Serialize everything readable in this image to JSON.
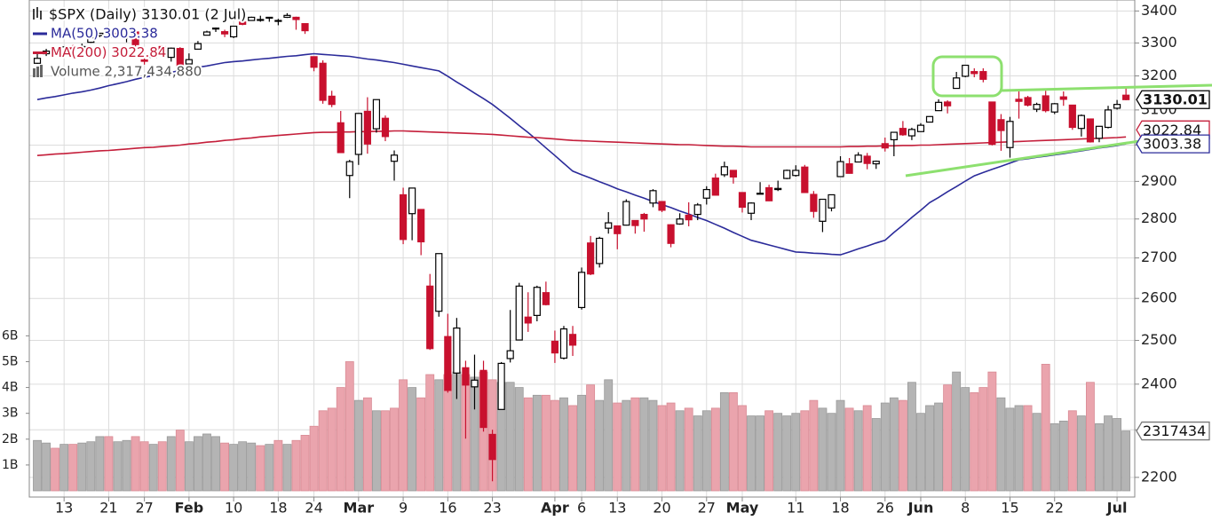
{
  "chart_data": {
    "type": "candlestick",
    "title": "$SPX (Daily) 3130.01 (2 Jul)",
    "categories": [
      null,
      null,
      null,
      "13",
      null,
      null,
      null,
      null,
      "21",
      null,
      null,
      null,
      "27",
      null,
      null,
      null,
      null,
      "Feb",
      null,
      null,
      null,
      null,
      "10",
      null,
      null,
      null,
      null,
      "18",
      null,
      null,
      null,
      "24",
      null,
      null,
      null,
      null,
      "Mar",
      null,
      null,
      null,
      null,
      "9",
      null,
      null,
      null,
      null,
      "16",
      null,
      null,
      null,
      null,
      "23",
      null,
      null,
      null,
      null,
      null,
      null,
      "Apr",
      null,
      null,
      "6",
      null,
      null,
      null,
      "13",
      null,
      null,
      null,
      null,
      "20",
      null,
      null,
      null,
      null,
      "27",
      null,
      null,
      null,
      "May",
      null,
      null,
      null,
      null,
      null,
      "11",
      null,
      null,
      null,
      null,
      "18",
      null,
      null,
      null,
      null,
      "26",
      null,
      null,
      null,
      "Jun",
      null,
      null,
      null,
      null,
      "8",
      null,
      null,
      null,
      null,
      "15",
      null,
      null,
      null,
      null,
      "22",
      null,
      null,
      null,
      null,
      null,
      null,
      "Jul",
      null
    ],
    "open": [
      3238,
      3267,
      3281,
      3271,
      3285,
      3282,
      3302,
      3323,
      3321,
      3330,
      3316,
      3334,
      3248,
      3256,
      3289,
      3256,
      3283,
      3236,
      3281,
      3324,
      3344,
      3335,
      3319,
      3365,
      3370,
      3371,
      3378,
      3370,
      3380,
      3380,
      3360,
      3258,
      3238,
      3140,
      3063,
      2916,
      2974,
      3096,
      3046,
      3076,
      2955,
      2864,
      2814,
      2825,
      2630,
      2569,
      2509,
      2425,
      2437,
      2394,
      2431,
      2290,
      2344,
      2458,
      2501,
      2555,
      2559,
      2614,
      2498,
      2459,
      2514,
      2578,
      2738,
      2686,
      2776,
      2782,
      2784,
      2796,
      2812,
      2842,
      2846,
      2785,
      2787,
      2810,
      2812,
      2855,
      2909,
      2918,
      2930,
      2870,
      2815,
      2868,
      2883,
      2878,
      2908,
      2916,
      2939,
      2865,
      2794,
      2829,
      2913,
      2948,
      2953,
      2969,
      2948,
      3004,
      3015,
      3047,
      3026,
      3038,
      3065,
      3098,
      3123,
      3163,
      3199,
      3213,
      3213,
      3123,
      3072,
      2993,
      3131,
      3136,
      3102,
      3141,
      3094,
      3138,
      3114,
      3047,
      3074,
      3019,
      3050,
      3105,
      3143
    ],
    "high": [
      3268,
      3282,
      3282,
      3288,
      3294,
      3298,
      3316,
      3330,
      3329,
      3337,
      3326,
      3338,
      3259,
      3285,
      3293,
      3286,
      3287,
      3268,
      3306,
      3338,
      3348,
      3341,
      3353,
      3376,
      3382,
      3385,
      3381,
      3375,
      3393,
      3382,
      3360,
      3259,
      3247,
      3156,
      3097,
      2959,
      3091,
      3137,
      3130,
      3084,
      2985,
      2883,
      2883,
      2825,
      2660,
      2711,
      2563,
      2553,
      2453,
      2467,
      2453,
      2300,
      2450,
      2572,
      2638,
      2615,
      2631,
      2641,
      2523,
      2534,
      2534,
      2676,
      2756,
      2754,
      2818,
      2783,
      2852,
      2797,
      2816,
      2879,
      2846,
      2786,
      2815,
      2844,
      2842,
      2887,
      2921,
      2954,
      2930,
      2870,
      2844,
      2898,
      2891,
      2902,
      2932,
      2944,
      2945,
      2874,
      2853,
      2865,
      2969,
      2964,
      2980,
      2978,
      2957,
      3021,
      3037,
      3068,
      3049,
      3062,
      3082,
      3131,
      3128,
      3212,
      3232,
      3223,
      3223,
      3124,
      3088,
      3080,
      3154,
      3141,
      3121,
      3156,
      3120,
      3154,
      3115,
      3087,
      3074,
      3054,
      3112,
      3129,
      3165
    ],
    "low": [
      3236,
      3260,
      3260,
      3268,
      3275,
      3277,
      3300,
      3318,
      3316,
      3318,
      3302,
      3281,
      3234,
      3255,
      3269,
      3243,
      3222,
      3235,
      3280,
      3323,
      3334,
      3318,
      3315,
      3355,
      3369,
      3366,
      3366,
      3355,
      3378,
      3341,
      3328,
      3214,
      3118,
      3108,
      2978,
      2855,
      2945,
      2976,
      3035,
      3011,
      2902,
      2735,
      2745,
      2707,
      2478,
      2556,
      2381,
      2367,
      2281,
      2344,
      2296,
      2192,
      2344,
      2449,
      2501,
      2520,
      2545,
      2583,
      2448,
      2456,
      2464,
      2573,
      2657,
      2676,
      2762,
      2722,
      2783,
      2762,
      2767,
      2831,
      2818,
      2727,
      2785,
      2781,
      2797,
      2838,
      2862,
      2912,
      2894,
      2817,
      2797,
      2865,
      2847,
      2874,
      2906,
      2913,
      2870,
      2803,
      2766,
      2820,
      2913,
      2921,
      2953,
      2933,
      2934,
      2982,
      2969,
      3026,
      3014,
      3037,
      3064,
      3098,
      3090,
      3163,
      3196,
      3196,
      3181,
      2999,
      2984,
      2965,
      3075,
      3110,
      3094,
      3093,
      3088,
      3112,
      3043,
      3024,
      3007,
      3008,
      3047,
      3101,
      3128
    ],
    "close": [
      3253,
      3275,
      3265,
      3288,
      3283,
      3289,
      3316,
      3330,
      3321,
      3321,
      3325,
      3295,
      3244,
      3276,
      3273,
      3284,
      3226,
      3249,
      3298,
      3334,
      3346,
      3328,
      3352,
      3358,
      3380,
      3373,
      3380,
      3370,
      3386,
      3373,
      3338,
      3226,
      3128,
      3116,
      2979,
      2954,
      3090,
      3003,
      3130,
      3024,
      2972,
      2747,
      2882,
      2741,
      2481,
      2711,
      2386,
      2529,
      2398,
      2409,
      2305,
      2237,
      2447,
      2476,
      2630,
      2541,
      2627,
      2585,
      2471,
      2527,
      2489,
      2664,
      2660,
      2750,
      2790,
      2762,
      2846,
      2783,
      2800,
      2875,
      2823,
      2737,
      2800,
      2798,
      2837,
      2878,
      2863,
      2940,
      2912,
      2831,
      2842,
      2868,
      2848,
      2881,
      2930,
      2930,
      2870,
      2820,
      2852,
      2864,
      2954,
      2922,
      2972,
      2949,
      2955,
      2992,
      3036,
      3029,
      3044,
      3056,
      3081,
      3122,
      3112,
      3194,
      3232,
      3207,
      3190,
      3002,
      3041,
      3067,
      3125,
      3114,
      3116,
      3098,
      3118,
      3131,
      3050,
      3084,
      3009,
      3053,
      3100,
      3116,
      3130.01
    ],
    "up_color": "#000000",
    "down_color": "#c8102e",
    "series": [
      {
        "name": "MA(50) 3003.38",
        "color": "#2b2b9a",
        "values": [
          3130,
          3135,
          3139,
          3144,
          3149,
          3153,
          3158,
          3164,
          3171,
          3177,
          3183,
          3190,
          3196,
          3201,
          3206,
          3211,
          3216,
          3221,
          3226,
          3230,
          3235,
          3240,
          3243,
          3245,
          3248,
          3251,
          3253,
          3256,
          3259,
          3261,
          3264,
          3267,
          3265,
          3263,
          3261,
          3259,
          3255,
          3251,
          3248,
          3244,
          3240,
          3235,
          3230,
          3225,
          3220,
          3215,
          3199,
          3182,
          3166,
          3149,
          3133,
          3116,
          3096,
          3076,
          3055,
          3035,
          3014,
          2992,
          2971,
          2949,
          2928,
          2918,
          2909,
          2899,
          2890,
          2880,
          2872,
          2863,
          2855,
          2846,
          2838,
          2830,
          2821,
          2813,
          2804,
          2796,
          2786,
          2776,
          2765,
          2755,
          2745,
          2739,
          2733,
          2727,
          2721,
          2715,
          2714,
          2712,
          2711,
          2709,
          2708,
          2715,
          2723,
          2730,
          2738,
          2745,
          2765,
          2784,
          2804,
          2823,
          2843,
          2857,
          2872,
          2886,
          2901,
          2915,
          2924,
          2933,
          2941,
          2950,
          2959,
          2962,
          2966,
          2969,
          2973,
          2976,
          2980,
          2984,
          2988,
          2992,
          2995,
          2999,
          3003.38
        ]
      },
      {
        "name": "MA(200) 3022.84",
        "color": "#c41e3a",
        "values": [
          2971,
          2973,
          2975,
          2976,
          2978,
          2980,
          2982,
          2984,
          2985,
          2987,
          2989,
          2991,
          2993,
          2994,
          2996,
          2998,
          3000,
          3003,
          3005,
          3008,
          3010,
          3013,
          3015,
          3018,
          3020,
          3023,
          3025,
          3027,
          3029,
          3031,
          3033,
          3035,
          3036,
          3036,
          3037,
          3037,
          3038,
          3038,
          3039,
          3039,
          3040,
          3040,
          3039,
          3038,
          3037,
          3036,
          3035,
          3034,
          3033,
          3032,
          3031,
          3030,
          3028,
          3026,
          3024,
          3022,
          3021,
          3019,
          3017,
          3015,
          3013,
          3012,
          3011,
          3010,
          3009,
          3008,
          3007,
          3006,
          3005,
          3004,
          3003,
          3002,
          3001,
          3001,
          3000,
          2999,
          2998,
          2997,
          2997,
          2996,
          2995,
          2995,
          2995,
          2995,
          2995,
          2995,
          2995,
          2995,
          2995,
          2995,
          2995,
          2996,
          2996,
          2997,
          2997,
          2998,
          2998,
          2999,
          2999,
          3000,
          3000,
          3001,
          3002,
          3003,
          3004,
          3005,
          3006,
          3007,
          3008,
          3009,
          3010,
          3011,
          3012,
          3013,
          3014,
          3015,
          3016,
          3017,
          3018,
          3019,
          3020,
          3021,
          3022.84
        ]
      },
      {
        "name": "Volume 2,317,434,880",
        "color": "#b4b4b4",
        "down_color": "#eaa4ad",
        "axis": "y2",
        "values": [
          1.95,
          1.85,
          1.65,
          1.8,
          1.8,
          1.85,
          1.9,
          2.1,
          2.1,
          1.9,
          1.95,
          2.1,
          1.9,
          1.8,
          1.9,
          2.1,
          2.35,
          1.9,
          2.1,
          2.2,
          2.1,
          1.85,
          1.8,
          1.9,
          1.85,
          1.75,
          1.8,
          1.95,
          1.8,
          1.95,
          2.15,
          2.5,
          3.1,
          3.2,
          4.0,
          5.0,
          3.5,
          3.6,
          3.1,
          3.1,
          3.2,
          4.3,
          4.0,
          3.6,
          4.5,
          4.3,
          4.5,
          4.6,
          4.5,
          4.4,
          4.6,
          4.3,
          4.2,
          4.2,
          4.0,
          3.6,
          3.7,
          3.7,
          3.5,
          3.6,
          3.3,
          3.7,
          4.1,
          3.5,
          4.3,
          3.4,
          3.5,
          3.6,
          3.6,
          3.5,
          3.3,
          3.4,
          3.1,
          3.2,
          2.9,
          3.1,
          3.2,
          3.8,
          3.8,
          3.3,
          2.9,
          2.9,
          3.1,
          3.0,
          2.9,
          3.0,
          3.1,
          3.5,
          3.2,
          3.0,
          3.5,
          3.2,
          3.1,
          3.3,
          2.8,
          3.4,
          3.6,
          3.5,
          4.2,
          3.0,
          3.3,
          3.4,
          4.1,
          4.6,
          4.0,
          3.8,
          4.0,
          4.6,
          3.6,
          3.2,
          3.3,
          3.3,
          3.0,
          4.9,
          2.6,
          2.7,
          3.1,
          2.9,
          4.2,
          2.6,
          2.9,
          2.8,
          2.31743488
        ]
      }
    ],
    "last_tags": {
      "close": "3130.01",
      "ma50": "3003.38",
      "ma200": "3022.84",
      "volume": "2317434"
    },
    "ylim": [
      2160,
      3435
    ],
    "yticks": [
      2200,
      2300,
      2400,
      2500,
      2600,
      2700,
      2800,
      2900,
      3000,
      3100,
      3200,
      3300,
      3400
    ],
    "log_scale": true,
    "y2lim": [
      0,
      19
    ],
    "y2ticks": [
      {
        "value": 1,
        "label": "1B"
      },
      {
        "value": 2,
        "label": "2B"
      },
      {
        "value": 3,
        "label": "3B"
      },
      {
        "value": 4,
        "label": "4B"
      },
      {
        "value": 5,
        "label": "5B"
      },
      {
        "value": 6,
        "label": "6B"
      }
    ],
    "grid": true
  }
}
